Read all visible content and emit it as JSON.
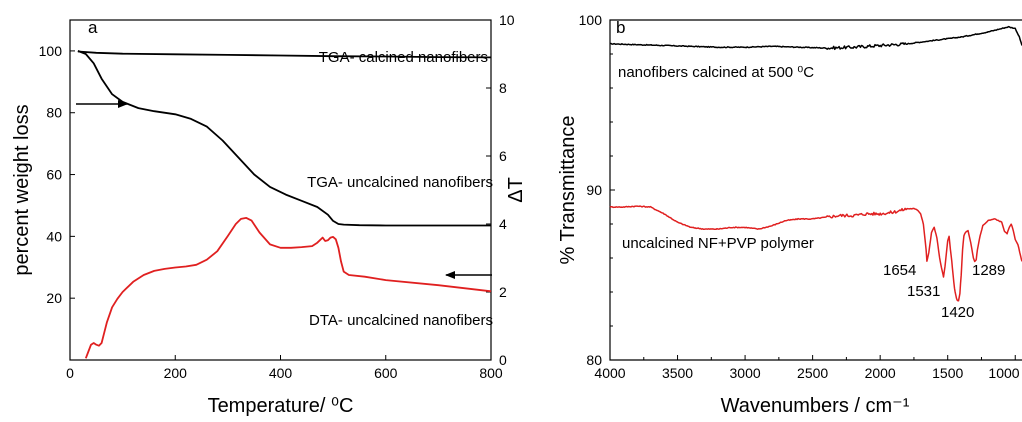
{
  "chart_data": [
    {
      "type": "line",
      "panel_label": "a",
      "xlabel": "Temperature/ ⁰C",
      "ylabel_left": "percent weight loss",
      "ylabel_right": "ΔT",
      "xlim": [
        0,
        800
      ],
      "ylim_left": [
        0,
        110
      ],
      "ylim_right": [
        0,
        10
      ],
      "xticks": [
        0,
        200,
        400,
        600,
        800
      ],
      "yticks_left": [
        20,
        40,
        60,
        80,
        100
      ],
      "yticks_right": [
        0,
        2,
        4,
        6,
        8,
        10
      ],
      "series": [
        {
          "name": "TGA- calcined nanofibers",
          "axis": "left",
          "color": "#000000",
          "x": [
            15,
            50,
            100,
            200,
            300,
            400,
            500,
            600,
            700,
            800
          ],
          "y": [
            99.8,
            99.4,
            99.1,
            98.9,
            98.7,
            98.5,
            98.3,
            98.2,
            98.0,
            97.9
          ]
        },
        {
          "name": "TGA- uncalcined nanofibers",
          "axis": "left",
          "color": "#000000",
          "x": [
            15,
            30,
            45,
            60,
            80,
            100,
            130,
            160,
            200,
            230,
            260,
            290,
            320,
            350,
            380,
            410,
            440,
            470,
            490,
            500,
            510,
            520,
            550,
            600,
            700,
            800
          ],
          "y": [
            100,
            99,
            96,
            91,
            86,
            83.5,
            81.5,
            80.5,
            79.5,
            78,
            75.5,
            71,
            65.5,
            60,
            56,
            53.5,
            51.5,
            49.5,
            47,
            45,
            44,
            43.8,
            43.6,
            43.5,
            43.5,
            43.5
          ]
        },
        {
          "name": "DTA- uncalcined nanofibers",
          "axis": "right",
          "color": "#e02020",
          "x": [
            30,
            35,
            40,
            45,
            50,
            55,
            60,
            65,
            70,
            80,
            90,
            100,
            120,
            140,
            160,
            180,
            200,
            220,
            240,
            260,
            280,
            300,
            315,
            325,
            335,
            345,
            360,
            380,
            400,
            420,
            440,
            460,
            470,
            480,
            485,
            490,
            495,
            500,
            505,
            510,
            515,
            520,
            530,
            560,
            600,
            700,
            800
          ],
          "y": [
            0.05,
            0.25,
            0.45,
            0.5,
            0.45,
            0.42,
            0.5,
            0.8,
            1.1,
            1.55,
            1.8,
            2.0,
            2.3,
            2.5,
            2.62,
            2.68,
            2.72,
            2.75,
            2.8,
            2.95,
            3.2,
            3.65,
            4.0,
            4.15,
            4.18,
            4.1,
            3.75,
            3.4,
            3.3,
            3.3,
            3.32,
            3.35,
            3.45,
            3.6,
            3.5,
            3.52,
            3.6,
            3.62,
            3.55,
            3.3,
            2.9,
            2.6,
            2.5,
            2.45,
            2.35,
            2.2,
            2.02
          ]
        }
      ],
      "annotations": [
        "TGA- calcined nanofibers",
        "TGA- uncalcined nanofibers",
        "DTA- uncalcined nanofibers"
      ]
    },
    {
      "type": "line",
      "panel_label": "b",
      "xlabel": "Wavenumbers / cm⁻¹",
      "ylabel": "% Transmittance",
      "xlim": [
        4000,
        950
      ],
      "ylim": [
        80,
        100
      ],
      "xticks": [
        4000,
        3500,
        3000,
        2500,
        2000,
        1500,
        1000
      ],
      "xtick_labels": [
        "4000",
        "3500",
        "3000",
        "2500",
        "2000",
        "1500",
        "1000"
      ],
      "yticks": [
        80,
        90,
        100
      ],
      "series": [
        {
          "name": "nanofibers calcined at 500 ⁰C",
          "color": "#000000",
          "x": [
            4000,
            3800,
            3600,
            3400,
            3200,
            3000,
            2800,
            2600,
            2400,
            2200,
            2100,
            2000,
            1900,
            1800,
            1700,
            1600,
            1500,
            1400,
            1300,
            1200,
            1100,
            1050,
            1000,
            970,
            950
          ],
          "y": [
            98.6,
            98.55,
            98.5,
            98.45,
            98.4,
            98.4,
            98.45,
            98.4,
            98.35,
            98.4,
            98.45,
            98.5,
            98.55,
            98.6,
            98.7,
            98.8,
            98.9,
            99.0,
            99.15,
            99.3,
            99.5,
            99.6,
            99.5,
            99.0,
            98.5
          ]
        },
        {
          "name": "uncalcined NF+PVP polymer",
          "color": "#e02020",
          "x": [
            4000,
            3900,
            3800,
            3700,
            3600,
            3500,
            3400,
            3300,
            3200,
            3100,
            3000,
            2900,
            2800,
            2700,
            2600,
            2500,
            2400,
            2300,
            2200,
            2100,
            2000,
            1900,
            1800,
            1750,
            1720,
            1700,
            1680,
            1660,
            1654,
            1640,
            1620,
            1600,
            1580,
            1560,
            1540,
            1531,
            1520,
            1500,
            1490,
            1480,
            1470,
            1460,
            1450,
            1440,
            1430,
            1420,
            1410,
            1400,
            1390,
            1380,
            1370,
            1350,
            1330,
            1310,
            1300,
            1289,
            1280,
            1260,
            1240,
            1200,
            1150,
            1100,
            1080,
            1060,
            1050,
            1030,
            1020,
            1000,
            980,
            960,
            950
          ],
          "y": [
            89.0,
            89.0,
            89.05,
            89.0,
            88.6,
            88.1,
            87.8,
            87.7,
            87.7,
            87.8,
            87.8,
            87.7,
            87.9,
            88.2,
            88.3,
            88.3,
            88.4,
            88.5,
            88.5,
            88.6,
            88.6,
            88.7,
            88.9,
            88.9,
            88.8,
            88.6,
            88.0,
            86.5,
            85.8,
            86.3,
            87.5,
            87.8,
            87.2,
            86.0,
            85.2,
            84.9,
            85.5,
            87.0,
            87.3,
            86.5,
            85.8,
            85.0,
            84.2,
            83.8,
            83.5,
            83.5,
            83.9,
            85.0,
            86.5,
            87.3,
            87.5,
            87.6,
            86.9,
            86.0,
            85.8,
            85.9,
            86.5,
            87.3,
            87.9,
            88.2,
            88.3,
            88.1,
            87.6,
            87.4,
            87.7,
            88.0,
            87.8,
            87.1,
            86.8,
            86.1,
            85.8
          ]
        }
      ],
      "annotations": [
        "nanofibers calcined at 500 ⁰C",
        "uncalcined NF+PVP polymer",
        "1654",
        "1531",
        "1420",
        "1289"
      ]
    }
  ]
}
